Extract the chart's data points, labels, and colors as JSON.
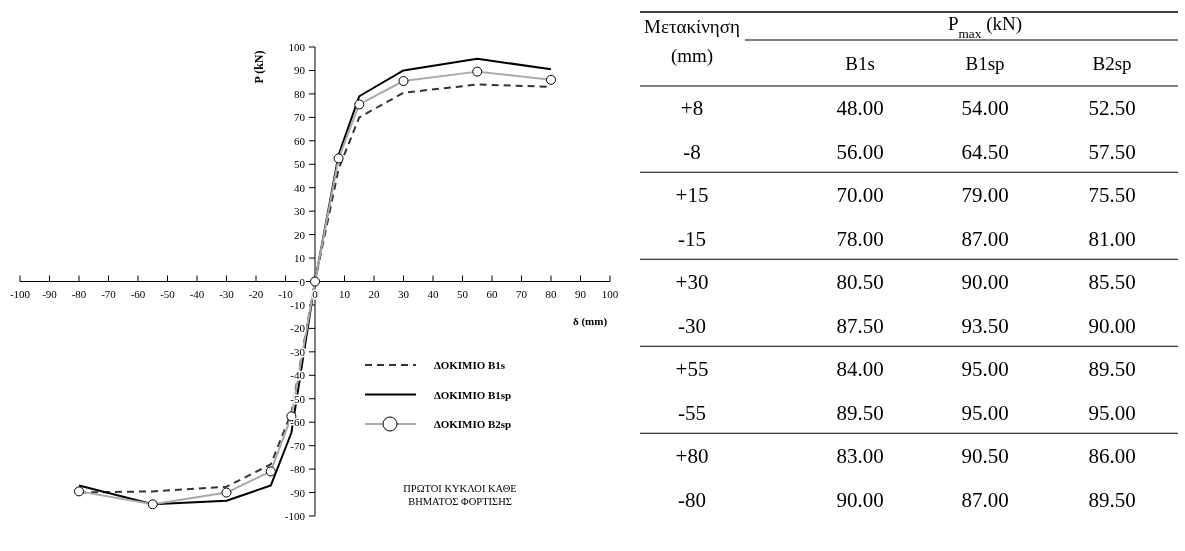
{
  "chart_data": [
    {
      "type": "line",
      "ylabel": "P (kN)",
      "xlabel": "δ (mm)",
      "xlim": [
        -100,
        100
      ],
      "ylim": [
        -100,
        100
      ],
      "xticks": [
        -100,
        -90,
        -80,
        -70,
        -60,
        -50,
        -40,
        -30,
        -20,
        -10,
        0,
        10,
        20,
        30,
        40,
        50,
        60,
        70,
        80,
        90,
        100
      ],
      "yticks": [
        -100,
        -90,
        -80,
        -70,
        -60,
        -50,
        -40,
        -30,
        -20,
        -10,
        0,
        10,
        20,
        30,
        40,
        50,
        60,
        70,
        80,
        90,
        100
      ],
      "x": [
        -80,
        -55,
        -30,
        -15,
        -8,
        0,
        8,
        15,
        30,
        55,
        80
      ],
      "series": [
        {
          "name": "ΔΟΚΙΜΙΟ B1s",
          "color": "#333333",
          "line_style": "dashed",
          "marker": "none",
          "values": [
            -90,
            -89.5,
            -87.5,
            -78,
            -56,
            0,
            48,
            70,
            80.5,
            84,
            83
          ]
        },
        {
          "name": "ΔΟΚΙΜΙΟ B1sp",
          "color": "#000000",
          "line_style": "solid",
          "marker": "none",
          "values": [
            -87,
            -95,
            -93.5,
            -87,
            -64.5,
            0,
            54,
            79,
            90,
            95,
            90.5
          ]
        },
        {
          "name": "ΔΟΚΙΜΙΟ B2sp",
          "color": "#aaaaaa",
          "line_style": "solid",
          "marker": "circle",
          "values": [
            -89.5,
            -95,
            -90,
            -81,
            -57.5,
            0,
            52.5,
            75.5,
            85.5,
            89.5,
            86
          ]
        }
      ],
      "legend": "bottom right",
      "grid": false,
      "annotations": [
        "ΠΡΩΤΟΙ ΚΥΚΛΟΙ ΚΑΘΕ\nΒΗΜΑΤΟΣ ΦΟΡΤΙΣΗΣ"
      ]
    },
    {
      "type": "other",
      "xlabel": "Μετακίνηση (mm)",
      "ylabel": "P$_{max}$ (kN)",
      "categories": [
        "+8",
        "-8",
        "+15",
        "-15",
        "+30",
        "-30",
        "+55",
        "-55",
        "+80",
        "-80"
      ],
      "series": [
        {
          "name": "B1s",
          "values": [
            48,
            56,
            70,
            78,
            80.5,
            87.5,
            84,
            89.5,
            83,
            90
          ],
          "value_labels": [
            "48.00",
            "56.00",
            "70.00",
            "78.00",
            "80.50",
            "87.50",
            "84.00",
            "89.50",
            "83.00",
            "90.00"
          ]
        },
        {
          "name": "B1sp",
          "values": [
            54,
            64.5,
            79,
            87,
            90,
            93.5,
            95,
            95,
            90.5,
            87
          ],
          "value_labels": [
            "54.00",
            "64.50",
            "79.00",
            "87.00",
            "90.00",
            "93.50",
            "95.00",
            "95.00",
            "90.50",
            "87.00"
          ]
        },
        {
          "name": "B2sp",
          "values": [
            52.5,
            57.5,
            75.5,
            81,
            85.5,
            90,
            89.5,
            95,
            86,
            89.5
          ],
          "value_labels": [
            "52.50",
            "57.50",
            "75.50",
            "81.00",
            "85.50",
            "90.00",
            "89.50",
            "95.00",
            "86.00",
            "89.50"
          ]
        }
      ]
    }
  ]
}
